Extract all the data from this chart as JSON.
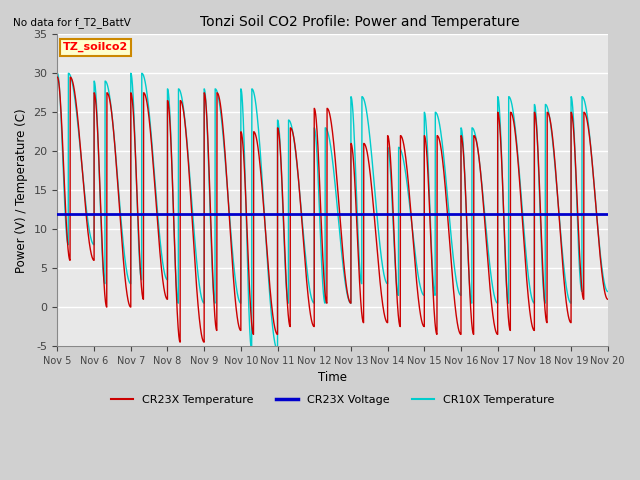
{
  "title": "Tonzi Soil CO2 Profile: Power and Temperature",
  "subtitle": "No data for f_T2_BattV",
  "xlabel": "Time",
  "ylabel": "Power (V) / Temperature (C)",
  "ylim": [
    -5,
    35
  ],
  "yticks": [
    -5,
    0,
    5,
    10,
    15,
    20,
    25,
    30,
    35
  ],
  "xlim": [
    0,
    15
  ],
  "xtick_labels": [
    "Nov 5",
    "Nov 6",
    "Nov 7",
    "Nov 8",
    "Nov 9",
    "Nov 10",
    "Nov 11",
    "Nov 12",
    "Nov 13",
    "Nov 14",
    "Nov 15",
    "Nov 16",
    "Nov 17",
    "Nov 18",
    "Nov 19",
    "Nov 20"
  ],
  "legend_items": [
    {
      "label": "CR23X Temperature",
      "color": "#cc0000",
      "lw": 1.0
    },
    {
      "label": "CR23X Voltage",
      "color": "#0000cc",
      "lw": 2.0
    },
    {
      "label": "CR10X Temperature",
      "color": "#00cccc",
      "lw": 1.0
    }
  ],
  "annotation_box": {
    "label": "TZ_soilco2",
    "facecolor": "#ffffcc",
    "edgecolor": "#cc8800"
  },
  "fig_facecolor": "#d0d0d0",
  "ax_facecolor": "#e8e8e8",
  "grid_color": "#ffffff",
  "voltage_value": 12.0,
  "cr23x_peaks": [
    29.5,
    27.5,
    27.5,
    26.5,
    27.5,
    22.5,
    23.0,
    25.5,
    21.0,
    22.0,
    22.0,
    22.0,
    25.0,
    25.0,
    25.0
  ],
  "cr23x_mins": [
    6.0,
    0.0,
    1.0,
    -4.5,
    -3.0,
    -3.5,
    -2.5,
    0.5,
    -2.0,
    -2.5,
    -3.5,
    -3.5,
    -3.0,
    -2.0,
    1.0
  ],
  "cr23x_tpeak": [
    0.35,
    0.35,
    0.35,
    0.35,
    0.35,
    0.35,
    0.35,
    0.35,
    0.35,
    0.35,
    0.35,
    0.35,
    0.35,
    0.35,
    0.35
  ],
  "cr10x_peaks": [
    30.0,
    29.0,
    30.0,
    28.0,
    28.0,
    28.0,
    24.0,
    23.0,
    27.0,
    20.5,
    25.0,
    23.0,
    27.0,
    26.0,
    27.0
  ],
  "cr10x_mins": [
    8.0,
    3.0,
    3.5,
    0.5,
    0.5,
    -5.5,
    0.5,
    0.5,
    3.0,
    1.5,
    1.5,
    0.5,
    0.5,
    0.5,
    2.0
  ],
  "cr10x_tpeak": [
    0.3,
    0.3,
    0.3,
    0.3,
    0.3,
    0.3,
    0.3,
    0.3,
    0.3,
    0.3,
    0.3,
    0.3,
    0.3,
    0.3,
    0.3
  ],
  "n_per_day": 200
}
